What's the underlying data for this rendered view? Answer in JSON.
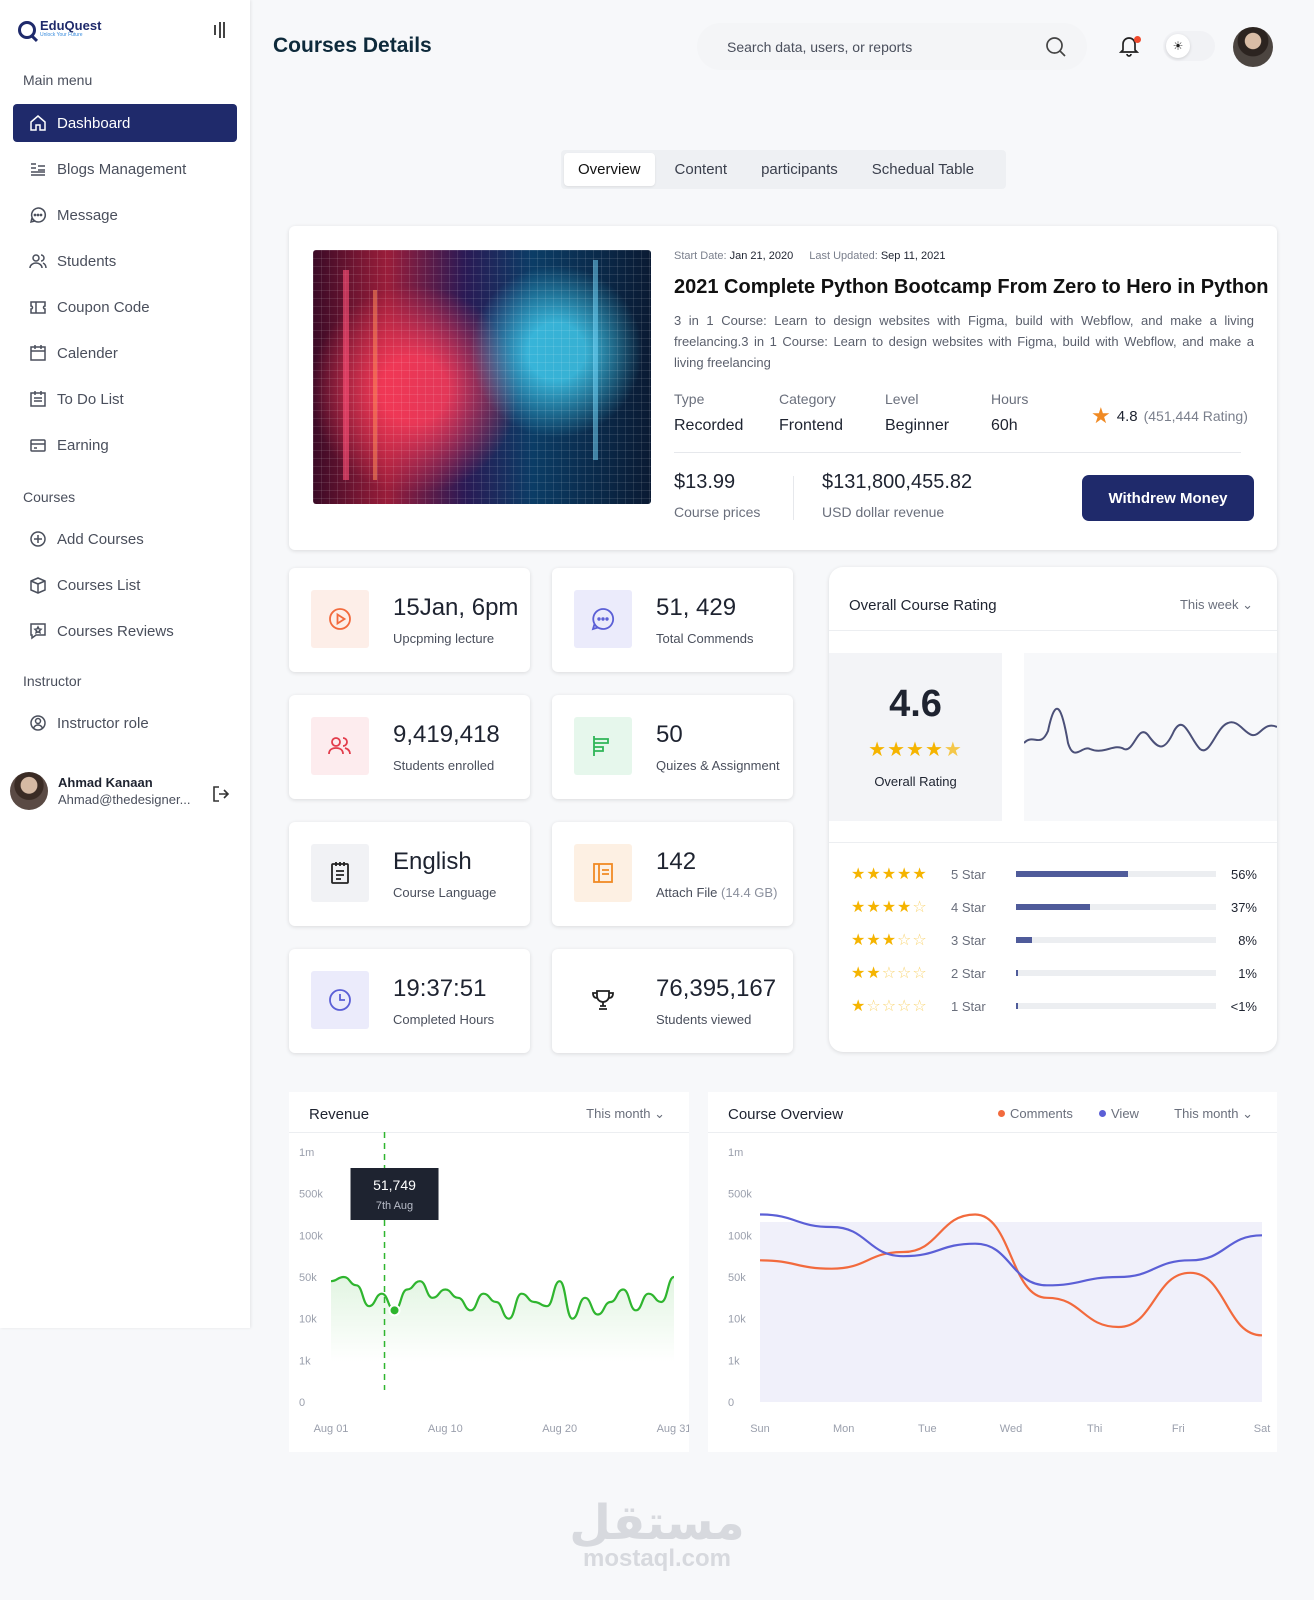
{
  "brand": {
    "name": "EduQuest",
    "tagline": "Unlock Your Future"
  },
  "sidebar": {
    "main_label": "Main menu",
    "main_items": [
      {
        "label": "Dashboard",
        "icon": "home-icon",
        "active": true
      },
      {
        "label": "Blogs Management",
        "icon": "blog-icon"
      },
      {
        "label": "Message",
        "icon": "message-icon"
      },
      {
        "label": "Students",
        "icon": "users-icon"
      },
      {
        "label": "Coupon Code",
        "icon": "ticket-icon"
      },
      {
        "label": "Calender",
        "icon": "calendar-icon"
      },
      {
        "label": "To Do List",
        "icon": "todo-icon"
      },
      {
        "label": "Earning",
        "icon": "card-icon"
      }
    ],
    "courses_label": "Courses",
    "course_items": [
      {
        "label": "Add Courses",
        "icon": "plus-circle-icon"
      },
      {
        "label": "Courses List",
        "icon": "box-icon"
      },
      {
        "label": "Courses Reviews",
        "icon": "review-icon"
      }
    ],
    "instructor_label": "Instructor",
    "instructor_items": [
      {
        "label": "Instructor role",
        "icon": "user-circle-icon"
      }
    ],
    "profile": {
      "name": "Ahmad Kanaan",
      "email": "Ahmad@thedesigner..."
    }
  },
  "header": {
    "title": "Courses Details",
    "search_placeholder": "Search data, users, or reports"
  },
  "tabs": [
    "Overview",
    "Content",
    "participants",
    "Schedual Table"
  ],
  "course": {
    "start_label": "Start Date:",
    "start_value": "Jan 21, 2020",
    "updated_label": "Last Updated:",
    "updated_value": "Sep 11, 2021",
    "title": "2021 Complete Python Bootcamp From Zero to Hero in Python",
    "description": "3 in 1 Course: Learn to design websites with Figma, build with Webflow, and make a living freelancing.3 in 1 Course: Learn to design websites with Figma, build with Webflow, and make a living freelancing",
    "attributes": [
      {
        "label": "Type",
        "value": "Recorded"
      },
      {
        "label": "Category",
        "value": "Frontend"
      },
      {
        "label": "Level",
        "value": "Beginner"
      },
      {
        "label": "Hours",
        "value": "60h"
      }
    ],
    "rating": "4.8",
    "rating_count": "(451,444 Rating)",
    "price": "$13.99",
    "price_label": "Course prices",
    "revenue": "$131,800,455.82",
    "revenue_label": "USD dollar revenue",
    "withdraw_label": "Withdrew Money"
  },
  "stats": [
    {
      "value": "15Jan, 6pm",
      "label": "Upcpming lecture",
      "icon": "play-icon",
      "color": "#f26a3d",
      "bg": "#fdeee8"
    },
    {
      "value": "51, 429",
      "label": "Total Commends",
      "icon": "chat-icon",
      "color": "#5b5fd6",
      "bg": "#ebebfb"
    },
    {
      "value": "9,419,418",
      "label": "Students enrolled",
      "icon": "users-icon",
      "color": "#e23c4b",
      "bg": "#fdecee"
    },
    {
      "value": "50",
      "label": "Quizes & Assignment",
      "icon": "align-icon",
      "color": "#2fb558",
      "bg": "#e6f7ec"
    },
    {
      "value": "English",
      "label": "Course Language",
      "icon": "notebook-icon",
      "color": "#222222",
      "bg": "#f1f2f5"
    },
    {
      "value": "142",
      "label": "Attach File",
      "label_extra": "(14.4 GB)",
      "icon": "file-icon",
      "color": "#f08a24",
      "bg": "#fdf0e3"
    },
    {
      "value": "19:37:51",
      "label": "Completed Hours",
      "icon": "clock-icon",
      "color": "#5b5fd6",
      "bg": "#ebebfb"
    },
    {
      "value": "76,395,167",
      "label": "Students viewed",
      "icon": "trophy-icon",
      "color": "#222222",
      "bg": "#ffffff"
    }
  ],
  "rating_card": {
    "title": "Overall Course Rating",
    "filter": "This week",
    "score": "4.6",
    "score_label": "Overall Rating",
    "rows": [
      {
        "label": "5 Star",
        "stars": 5,
        "percent": "56%",
        "value": 56
      },
      {
        "label": "4 Star",
        "stars": 4,
        "percent": "37%",
        "value": 37
      },
      {
        "label": "3 Star",
        "stars": 3,
        "percent": "8%",
        "value": 8
      },
      {
        "label": "2 Star",
        "stars": 2,
        "percent": "1%",
        "value": 1
      },
      {
        "label": "1 Star",
        "stars": 1,
        "percent": "<1%",
        "value": 0.5
      }
    ]
  },
  "revenue_chart": {
    "title": "Revenue",
    "filter": "This month",
    "tooltip_value": "51,749",
    "tooltip_label": "7th Aug"
  },
  "overview_chart": {
    "title": "Course Overview",
    "filter": "This month",
    "legend": [
      "Comments",
      "View"
    ]
  },
  "chart_data": [
    {
      "type": "line",
      "title": "Revenue",
      "y_ticks": [
        "1m",
        "500k",
        "100k",
        "50k",
        "10k",
        "1k",
        "0"
      ],
      "x_ticks": [
        "Aug 01",
        "Aug 10",
        "Aug 20",
        "Aug 31"
      ],
      "series": [
        {
          "name": "Revenue",
          "color": "#2fb52f",
          "values": [
            2.9,
            3.0,
            2.8,
            2.3,
            2.6,
            2.2,
            2.7,
            2.9,
            2.5,
            2.7,
            2.5,
            2.2,
            2.6,
            2.4,
            2.0,
            2.6,
            2.4,
            2.3,
            2.9,
            2.0,
            2.5,
            2.1,
            2.4,
            2.7,
            2.2,
            2.6,
            2.4,
            3.0
          ]
        }
      ],
      "highlight": {
        "x_index": 5,
        "value": "51,749",
        "label": "7th Aug"
      }
    },
    {
      "type": "line",
      "title": "Course Overview",
      "y_ticks": [
        "1m",
        "500k",
        "100k",
        "50k",
        "10k",
        "1k",
        "0"
      ],
      "x_ticks": [
        "Sun",
        "Mon",
        "Tue",
        "Wed",
        "Thi",
        "Fri",
        "Sat"
      ],
      "series": [
        {
          "name": "Comments",
          "color": "#f26a3d",
          "values": [
            3.4,
            3.2,
            3.6,
            4.5,
            2.5,
            1.8,
            3.1,
            1.6
          ]
        },
        {
          "name": "View",
          "color": "#5b5fd6",
          "values": [
            4.5,
            4.2,
            3.5,
            3.8,
            2.8,
            3.0,
            3.4,
            4.0
          ]
        }
      ]
    }
  ]
}
